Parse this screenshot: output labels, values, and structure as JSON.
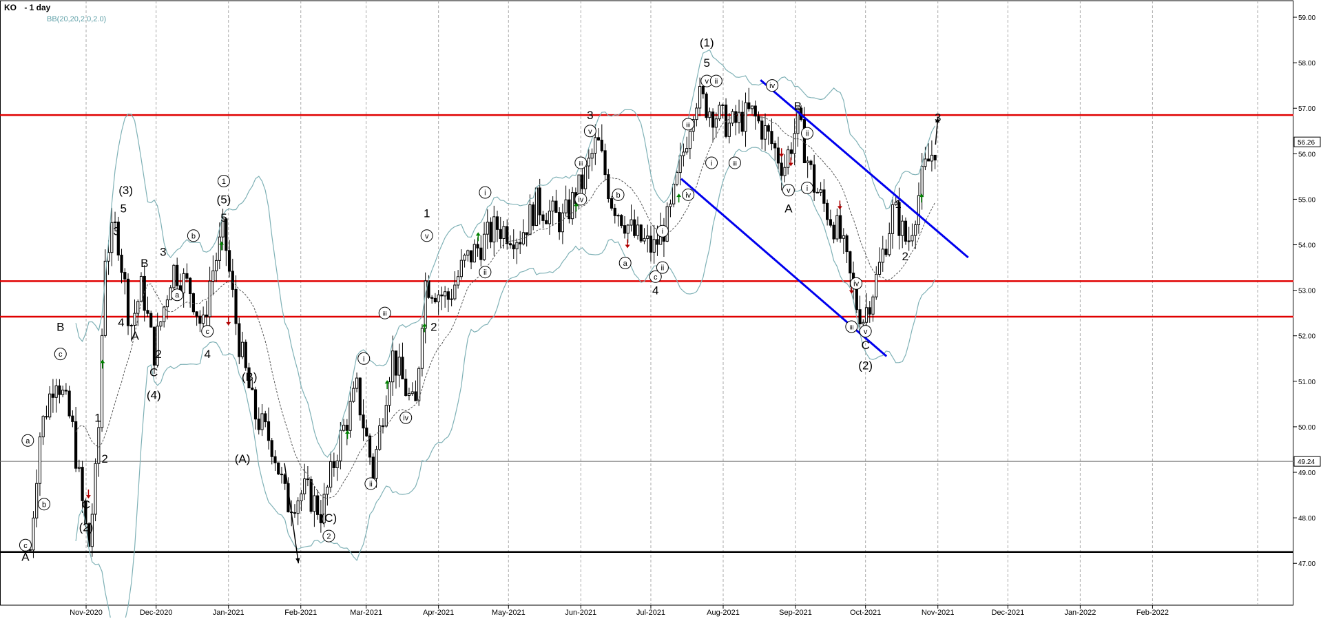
{
  "header": {
    "symbol": "KO",
    "timeframe": "- 1 day",
    "indicator": "BB(20,20,2.0,2.0)"
  },
  "colors": {
    "candle": "#000000",
    "bollinger": "#7fb1b6",
    "middle_band": "#555555",
    "resistance": "#e00000",
    "support": "#000000",
    "channel": "#0000ee",
    "up_arrow": "#008000",
    "down_arrow": "#b00000",
    "grid": "#aaaaaa"
  },
  "chart_data": {
    "type": "candlestick",
    "ylim": [
      46.3,
      59.2
    ],
    "y_ticks": [
      "47.00",
      "48.00",
      "49.00",
      "50.00",
      "51.00",
      "52.00",
      "53.00",
      "54.00",
      "55.00",
      "56.00",
      "57.00",
      "58.00",
      "59.00"
    ],
    "current_price_label": "56.26",
    "marker_price_label": "49.24",
    "x_labels": [
      "Nov-2020",
      "Dec-2020",
      "Jan-2021",
      "Feb-2021",
      "Mar-2021",
      "Apr-2021",
      "May-2021",
      "Jun-2021",
      "Jul-2021",
      "Aug-2021",
      "Sep-2021",
      "Oct-2021",
      "Nov-2021",
      "Dec-2021",
      "Jan-2022",
      "Feb-2022"
    ],
    "grid": true,
    "horizontal_levels": [
      {
        "price": 56.85,
        "kind": "resistance"
      },
      {
        "price": 53.2,
        "kind": "resistance"
      },
      {
        "price": 52.42,
        "kind": "resistance"
      },
      {
        "price": 49.24,
        "kind": "reference"
      },
      {
        "price": 47.25,
        "kind": "support"
      }
    ],
    "price_path": [
      [
        "2020-10-08",
        47.3
      ],
      [
        "2020-10-12",
        49.8
      ],
      [
        "2020-10-19",
        51.2
      ],
      [
        "2020-10-26",
        50.0
      ],
      [
        "2020-11-02",
        47.3
      ],
      [
        "2020-11-06",
        49.4
      ],
      [
        "2020-11-09",
        53.8
      ],
      [
        "2020-11-14",
        54.4
      ],
      [
        "2020-11-20",
        52.2
      ],
      [
        "2020-11-25",
        53.1
      ],
      [
        "2020-11-30",
        51.6
      ],
      [
        "2020-12-08",
        53.5
      ],
      [
        "2020-12-16",
        53.0
      ],
      [
        "2020-12-21",
        52.1
      ],
      [
        "2020-12-24",
        53.2
      ],
      [
        "2020-12-30",
        54.3
      ],
      [
        "2021-01-05",
        52.0
      ],
      [
        "2021-01-12",
        50.3
      ],
      [
        "2021-01-20",
        49.6
      ],
      [
        "2021-01-26",
        48.3
      ],
      [
        "2021-02-03",
        48.6
      ],
      [
        "2021-02-10",
        48.1
      ],
      [
        "2021-02-17",
        49.6
      ],
      [
        "2021-02-25",
        50.8
      ],
      [
        "2021-03-04",
        49.0
      ],
      [
        "2021-03-12",
        51.6
      ],
      [
        "2021-03-22",
        50.3
      ],
      [
        "2021-03-26",
        53.2
      ],
      [
        "2021-04-05",
        52.8
      ],
      [
        "2021-04-12",
        53.6
      ],
      [
        "2021-04-26",
        54.4
      ],
      [
        "2021-05-06",
        54.2
      ],
      [
        "2021-05-13",
        54.9
      ],
      [
        "2021-05-24",
        54.5
      ],
      [
        "2021-06-02",
        55.4
      ],
      [
        "2021-06-08",
        56.3
      ],
      [
        "2021-06-14",
        55.0
      ],
      [
        "2021-06-24",
        54.2
      ],
      [
        "2021-07-02",
        53.9
      ],
      [
        "2021-07-09",
        54.6
      ],
      [
        "2021-07-16",
        56.3
      ],
      [
        "2021-07-20",
        57.3
      ],
      [
        "2021-07-26",
        57.0
      ],
      [
        "2021-08-04",
        56.6
      ],
      [
        "2021-08-13",
        56.9
      ],
      [
        "2021-08-20",
        56.4
      ],
      [
        "2021-08-27",
        55.7
      ],
      [
        "2021-09-02",
        56.7
      ],
      [
        "2021-09-09",
        55.3
      ],
      [
        "2021-09-20",
        54.2
      ],
      [
        "2021-09-27",
        52.7
      ],
      [
        "2021-09-30",
        52.4
      ],
      [
        "2021-10-06",
        53.3
      ],
      [
        "2021-10-13",
        54.8
      ],
      [
        "2021-10-19",
        54.0
      ],
      [
        "2021-10-26",
        55.6
      ],
      [
        "2021-11-01",
        56.3
      ]
    ],
    "wave_labels": [
      {
        "date": "2020-10-06",
        "price": 47.15,
        "text": "A",
        "circled": false
      },
      {
        "date": "2020-10-06",
        "price": 47.4,
        "text": "c",
        "circled": true
      },
      {
        "date": "2020-10-07",
        "price": 49.7,
        "text": "a",
        "circled": true
      },
      {
        "date": "2020-10-14",
        "price": 48.3,
        "text": "b",
        "circled": true
      },
      {
        "date": "2020-10-21",
        "price": 52.2,
        "text": "B",
        "circled": false
      },
      {
        "date": "2020-10-21",
        "price": 51.6,
        "text": "c",
        "circled": true
      },
      {
        "date": "2020-11-01",
        "price": 48.3,
        "text": "C",
        "circled": false
      },
      {
        "date": "2020-11-01",
        "price": 47.8,
        "text": "(2)",
        "circled": false
      },
      {
        "date": "2020-11-06",
        "price": 50.2,
        "text": "1",
        "circled": false
      },
      {
        "date": "2020-11-09",
        "price": 49.3,
        "text": "2",
        "circled": false
      },
      {
        "date": "2020-11-14",
        "price": 54.3,
        "text": "3",
        "circled": false
      },
      {
        "date": "2020-11-17",
        "price": 54.8,
        "text": "5",
        "circled": false
      },
      {
        "date": "2020-11-18",
        "price": 55.2,
        "text": "(3)",
        "circled": false
      },
      {
        "date": "2020-11-16",
        "price": 52.3,
        "text": "4",
        "circled": false
      },
      {
        "date": "2020-11-22",
        "price": 52.0,
        "text": "A",
        "circled": false
      },
      {
        "date": "2020-11-26",
        "price": 53.6,
        "text": "B",
        "circled": false
      },
      {
        "date": "2020-11-30",
        "price": 51.2,
        "text": "C",
        "circled": false
      },
      {
        "date": "2020-11-30",
        "price": 50.7,
        "text": "(4)",
        "circled": false
      },
      {
        "date": "2020-12-02",
        "price": 51.6,
        "text": "2",
        "circled": false
      },
      {
        "date": "2020-12-04",
        "price": 53.85,
        "text": "3",
        "circled": false
      },
      {
        "date": "2020-12-10",
        "price": 52.9,
        "text": "a",
        "circled": true
      },
      {
        "date": "2020-12-17",
        "price": 54.2,
        "text": "b",
        "circled": true
      },
      {
        "date": "2020-12-23",
        "price": 52.1,
        "text": "c",
        "circled": true
      },
      {
        "date": "2020-12-23",
        "price": 51.6,
        "text": "4",
        "circled": false
      },
      {
        "date": "2020-12-30",
        "price": 54.6,
        "text": "5",
        "circled": false
      },
      {
        "date": "2020-12-30",
        "price": 55.0,
        "text": "(5)",
        "circled": false
      },
      {
        "date": "2020-12-30",
        "price": 55.4,
        "text": "1",
        "circled": true
      },
      {
        "date": "2021-01-10",
        "price": 51.1,
        "text": "(B)",
        "circled": false
      },
      {
        "date": "2021-01-07",
        "price": 49.3,
        "text": "(A)",
        "circled": false
      },
      {
        "date": "2021-02-13",
        "price": 48.0,
        "text": "(C)",
        "circled": false
      },
      {
        "date": "2021-02-13",
        "price": 47.6,
        "text": "2",
        "circled": true
      },
      {
        "date": "2021-03-03",
        "price": 48.75,
        "text": "ii",
        "circled": true
      },
      {
        "date": "2021-02-28",
        "price": 51.5,
        "text": "i",
        "circled": true
      },
      {
        "date": "2021-03-09",
        "price": 52.5,
        "text": "iii",
        "circled": true
      },
      {
        "date": "2021-03-18",
        "price": 50.2,
        "text": "iv",
        "circled": true
      },
      {
        "date": "2021-03-27",
        "price": 54.7,
        "text": "1",
        "circled": false
      },
      {
        "date": "2021-03-27",
        "price": 54.2,
        "text": "v",
        "circled": true
      },
      {
        "date": "2021-03-30",
        "price": 52.2,
        "text": "2",
        "circled": false
      },
      {
        "date": "2021-04-21",
        "price": 55.15,
        "text": "i",
        "circled": true
      },
      {
        "date": "2021-04-21",
        "price": 53.4,
        "text": "ii",
        "circled": true
      },
      {
        "date": "2021-06-01",
        "price": 55.8,
        "text": "iii",
        "circled": true
      },
      {
        "date": "2021-06-01",
        "price": 55.0,
        "text": "iv",
        "circled": true
      },
      {
        "date": "2021-06-05",
        "price": 56.85,
        "text": "3",
        "circled": false
      },
      {
        "date": "2021-06-05",
        "price": 56.5,
        "text": "v",
        "circled": true
      },
      {
        "date": "2021-06-17",
        "price": 55.1,
        "text": "b",
        "circled": true
      },
      {
        "date": "2021-06-20",
        "price": 53.6,
        "text": "a",
        "circled": true
      },
      {
        "date": "2021-07-03",
        "price": 53.3,
        "text": "c",
        "circled": true
      },
      {
        "date": "2021-07-06",
        "price": 53.5,
        "text": "ii",
        "circled": true
      },
      {
        "date": "2021-07-06",
        "price": 54.3,
        "text": "i",
        "circled": true
      },
      {
        "date": "2021-07-03",
        "price": 53.0,
        "text": "4",
        "circled": false
      },
      {
        "date": "2021-07-17",
        "price": 56.65,
        "text": "iii",
        "circled": true
      },
      {
        "date": "2021-07-17",
        "price": 55.1,
        "text": "iv",
        "circled": true
      },
      {
        "date": "2021-07-25",
        "price": 58.45,
        "text": "(1)",
        "circled": false
      },
      {
        "date": "2021-07-25",
        "price": 58.0,
        "text": "5",
        "circled": false
      },
      {
        "date": "2021-07-25",
        "price": 57.6,
        "text": "v",
        "circled": true
      },
      {
        "date": "2021-07-29",
        "price": 57.6,
        "text": "ii",
        "circled": true
      },
      {
        "date": "2021-07-27",
        "price": 55.8,
        "text": "i",
        "circled": true
      },
      {
        "date": "2021-08-06",
        "price": 55.8,
        "text": "iii",
        "circled": true
      },
      {
        "date": "2021-08-22",
        "price": 57.5,
        "text": "iv",
        "circled": true
      },
      {
        "date": "2021-09-02",
        "price": 57.05,
        "text": "B",
        "circled": false
      },
      {
        "date": "2021-09-06",
        "price": 56.45,
        "text": "ii",
        "circled": true
      },
      {
        "date": "2021-08-29",
        "price": 55.2,
        "text": "v",
        "circled": true
      },
      {
        "date": "2021-08-29",
        "price": 54.8,
        "text": "A",
        "circled": false
      },
      {
        "date": "2021-09-06",
        "price": 55.25,
        "text": "i",
        "circled": true
      },
      {
        "date": "2021-09-27",
        "price": 53.15,
        "text": "iv",
        "circled": true
      },
      {
        "date": "2021-09-25",
        "price": 52.2,
        "text": "iii",
        "circled": true
      },
      {
        "date": "2021-10-01",
        "price": 52.1,
        "text": "v",
        "circled": true
      },
      {
        "date": "2021-10-01",
        "price": 51.8,
        "text": "C",
        "circled": false
      },
      {
        "date": "2021-10-01",
        "price": 51.35,
        "text": "(2)",
        "circled": false
      },
      {
        "date": "2021-10-15",
        "price": 54.9,
        "text": "1",
        "circled": false
      },
      {
        "date": "2021-10-18",
        "price": 53.75,
        "text": "2",
        "circled": false
      },
      {
        "date": "2021-11-01",
        "price": 56.8,
        "text": "3",
        "circled": false
      }
    ],
    "signal_arrows": [
      {
        "date": "2020-11-08",
        "price": 51.4,
        "dir": "up"
      },
      {
        "date": "2020-12-29",
        "price": 54.0,
        "dir": "up"
      },
      {
        "date": "2021-02-21",
        "price": 49.85,
        "dir": "up"
      },
      {
        "date": "2021-03-10",
        "price": 50.95,
        "dir": "up"
      },
      {
        "date": "2021-03-26",
        "price": 52.2,
        "dir": "up"
      },
      {
        "date": "2021-04-18",
        "price": 54.2,
        "dir": "up"
      },
      {
        "date": "2021-05-30",
        "price": 54.85,
        "dir": "up"
      },
      {
        "date": "2021-07-13",
        "price": 55.05,
        "dir": "up"
      },
      {
        "date": "2021-10-25",
        "price": 55.05,
        "dir": "up"
      },
      {
        "date": "2020-11-02",
        "price": 48.5,
        "dir": "down"
      },
      {
        "date": "2021-01-01",
        "price": 52.3,
        "dir": "down"
      },
      {
        "date": "2021-06-21",
        "price": 54.0,
        "dir": "down"
      },
      {
        "date": "2021-08-26",
        "price": 56.0,
        "dir": "down"
      },
      {
        "date": "2021-08-30",
        "price": 55.8,
        "dir": "down"
      },
      {
        "date": "2021-09-20",
        "price": 54.85,
        "dir": "down"
      },
      {
        "date": "2021-09-25",
        "price": 53.0,
        "dir": "down"
      }
    ],
    "channel_lines": [
      {
        "from": [
          "2021-08-17",
          57.62
        ],
        "to": [
          "2021-11-14",
          53.72
        ]
      },
      {
        "from": [
          "2021-07-14",
          55.45
        ],
        "to": [
          "2021-10-10",
          51.55
        ]
      }
    ],
    "wave_arrows": [
      {
        "from": [
          "2021-01-25",
          49.2
        ],
        "to": [
          "2021-01-31",
          47.0
        ]
      },
      {
        "from": [
          "2021-10-31",
          56.2
        ],
        "to": [
          "2021-11-01",
          56.8
        ]
      }
    ]
  }
}
